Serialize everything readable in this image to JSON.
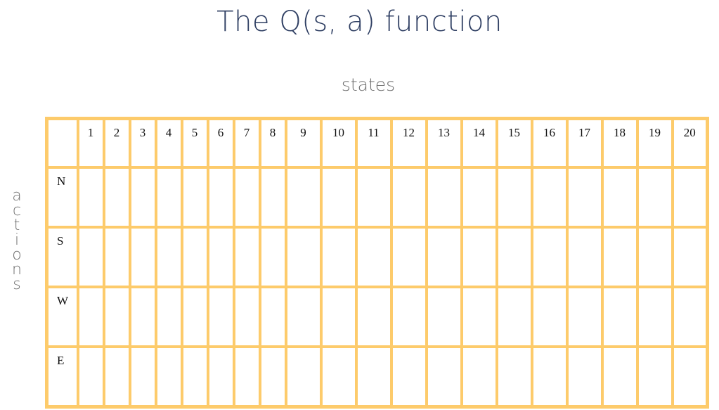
{
  "title": "The Q(s, a) function",
  "xlabel": "states",
  "ylabel": "actions",
  "states": [
    "1",
    "2",
    "3",
    "4",
    "5",
    "6",
    "7",
    "8",
    "9",
    "10",
    "11",
    "12",
    "13",
    "14",
    "15",
    "16",
    "17",
    "18",
    "19",
    "20"
  ],
  "actions": [
    "N",
    "S",
    "W",
    "E"
  ],
  "colors": {
    "grid": "#fdcb6b",
    "title": "#2f3f63",
    "label": "#6f6f6f"
  }
}
